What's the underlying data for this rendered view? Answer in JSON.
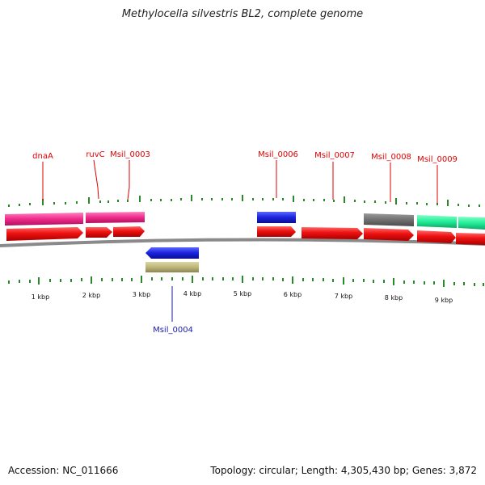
{
  "title": "Methylocella silvestris BL2, complete genome",
  "footer": {
    "accession": "Accession: NC_011666",
    "summary": "Topology: circular; Length: 4,305,430 bp; Genes: 3,872"
  },
  "map": {
    "kbp_labels": [
      "1 kbp",
      "2 kbp",
      "3 kbp",
      "4 kbp",
      "5 kbp",
      "6 kbp",
      "7 kbp",
      "8 kbp",
      "9 kbp"
    ],
    "gene_labels": [
      {
        "text": "dnaA",
        "color": "#e00000",
        "side": "top"
      },
      {
        "text": "ruvC",
        "color": "#e00000",
        "side": "top"
      },
      {
        "text": "Msil_0003",
        "color": "#e00000",
        "side": "top"
      },
      {
        "text": "Msil_0006",
        "color": "#e00000",
        "side": "top"
      },
      {
        "text": "Msil_0007",
        "color": "#e00000",
        "side": "top"
      },
      {
        "text": "Msil_0008",
        "color": "#e00000",
        "side": "top"
      },
      {
        "text": "Msil_0009",
        "color": "#e00000",
        "side": "top"
      },
      {
        "text": "Msil_0004",
        "color": "#1a1aa8",
        "side": "bottom"
      }
    ],
    "colors": {
      "cds": "#ee1111",
      "gene_magenta": "#ee2a8a",
      "gene_blue": "#1a22dd",
      "gene_gray": "#707070",
      "gene_green": "#22ee99",
      "gene_olive": "#bdb67a",
      "tick": "#2a8a2a",
      "backbone": "#777777"
    }
  }
}
